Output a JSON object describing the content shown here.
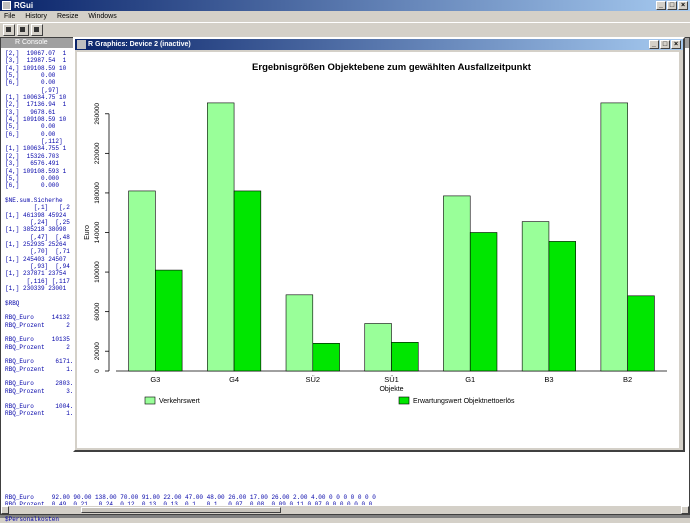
{
  "app": {
    "title": "RGui",
    "menu": [
      "File",
      "History",
      "Resize",
      "Windows"
    ]
  },
  "console": {
    "title": "R Console",
    "lines": [
      "[2,]  19067.07  1",
      "[3,]  12987.54  1",
      "[4,] 109108.59 10",
      "[5,]      0.00",
      "[6,]      0.00",
      "          [,97]",
      "[1,] 100634.75 10",
      "[2,]  17136.94  1",
      "[3,]   9678.61",
      "[4,] 109108.59 10",
      "[5,]      0.00",
      "[6,]      0.00",
      "          [,112]",
      "[1,] 100634.755 1",
      "[2,]  15326.703",
      "[3,]   6576.491",
      "[4,] 109108.593 1",
      "[5,]      0.000",
      "[6,]      0.000",
      "",
      "$NE.sum.Sicherhe",
      "        [,1]   [,2",
      "[1,] 461398 45924",
      "       [,24]  [,25",
      "[1,] 385218 38098",
      "       [,47]  [,48",
      "[1,] 252935 25264",
      "       [,70]  [,71",
      "[1,] 245403 24507",
      "       [,93]  [,94",
      "[1,] 237871 23754",
      "      [,116] [,117",
      "[1,] 230339 23001",
      "",
      "$RBQ",
      "",
      "RBQ_Euro     14132",
      "RBQ_Prozent      2",
      "",
      "RBQ_Euro     10135",
      "RBQ_Prozent      2",
      "",
      "RBQ_Euro      6171.",
      "RBQ_Prozent      1.",
      "",
      "RBQ_Euro      2803.",
      "RBQ_Prozent      3.",
      "",
      "RBQ_Euro      1004.",
      "RBQ_Prozent      1."
    ],
    "bottom_lines": [
      "RBQ_Euro     92.00 90.00 138.00 70.00 91.00 22.00 47.00 48.00 26.00 17.00 26.00 2.00 4.00 0 0 0 0 0 0 0",
      "RBQ_Prozent  0.49  0.21   0.24  0.12  0.13  0.13  0.1   0.1   0.07  0.08  0.09 0.11 0.07 0 0 0 0 0 0 0",
      "",
      "$Personalkosten"
    ]
  },
  "graphics": {
    "title": "R Graphics: Device 2 (inactive)"
  },
  "chart_data": {
    "type": "bar",
    "title": "Ergebnisgrößen Objektebene zum gewählten Ausfallzeitpunkt",
    "xlabel": "Objekte",
    "ylabel": "Euro",
    "categories": [
      "G3",
      "G4",
      "SÜ2",
      "SÜ1",
      "G1",
      "B3",
      "B2"
    ],
    "series": [
      {
        "name": "Verkehrswert",
        "color": "#99ff99",
        "values": [
          182000,
          271000,
          77000,
          48000,
          177000,
          151000,
          271000
        ]
      },
      {
        "name": "Erwartungswert Objektnettoerlös",
        "color": "#00e600",
        "values": [
          102000,
          182000,
          28000,
          29000,
          140000,
          131000,
          76000
        ]
      }
    ],
    "yticks": [
      0,
      20000,
      60000,
      100000,
      140000,
      180000,
      220000,
      260000
    ],
    "ylim": [
      0,
      280000
    ]
  }
}
